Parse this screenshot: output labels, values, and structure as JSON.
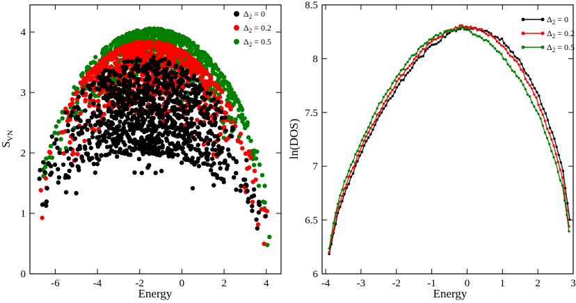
{
  "chart_data": [
    {
      "type": "scatter",
      "panel": "left",
      "xlabel": "Energy",
      "ylabel_main": "S",
      "ylabel_sub": "VN",
      "xlim": [
        -7.2,
        4.7
      ],
      "ylim": [
        0,
        4.45
      ],
      "xticks": [
        -6,
        -4,
        -2,
        0,
        2,
        4
      ],
      "yticks": [
        0,
        1,
        2,
        3,
        4
      ],
      "legend_position": "top-right",
      "series": [
        {
          "name": "Δ₂ = 0",
          "delta_label": "Δ",
          "sub": "2",
          "value_label": "= 0",
          "color": "#000000",
          "peak": 3.6,
          "edge_low": -6.9,
          "edge_high": 4.05
        },
        {
          "name": "Δ₂ = 0.2",
          "delta_label": "Δ",
          "sub": "2",
          "value_label": "= 0.2",
          "color": "#ff0000",
          "peak": 3.85,
          "edge_low": -6.7,
          "edge_high": 4.1
        },
        {
          "name": "Δ₂ = 0.5",
          "delta_label": "Δ",
          "sub": "2",
          "value_label": "= 0.5",
          "color": "#008000",
          "peak": 4.06,
          "edge_low": -6.6,
          "edge_high": 4.4
        }
      ]
    },
    {
      "type": "line",
      "panel": "right",
      "xlabel": "Energy",
      "ylabel": "ln(DOS)",
      "xlim": [
        -4.1,
        3.0
      ],
      "ylim": [
        6.0,
        8.5
      ],
      "xticks": [
        -4,
        -3,
        -2,
        -1,
        0,
        1,
        2,
        3
      ],
      "yticks": [
        6,
        6.5,
        7,
        7.5,
        8,
        8.5
      ],
      "legend_position": "top-right",
      "series": [
        {
          "name": "Δ₂ = 0",
          "delta_label": "Δ",
          "sub": "2",
          "value_label": "= 0",
          "color": "#000000",
          "x": [
            -3.9,
            -3.7,
            -3.5,
            -3.0,
            -2.5,
            -2.0,
            -1.5,
            -1.0,
            -0.5,
            -0.2,
            0.0,
            0.5,
            1.0,
            1.5,
            2.0,
            2.5,
            2.7,
            2.9
          ],
          "y": [
            6.17,
            6.5,
            6.72,
            7.12,
            7.45,
            7.72,
            7.95,
            8.12,
            8.24,
            8.28,
            8.28,
            8.26,
            8.17,
            7.97,
            7.68,
            7.22,
            6.98,
            6.5
          ]
        },
        {
          "name": "Δ₂ = 0.2",
          "delta_label": "Δ",
          "sub": "2",
          "value_label": "= 0.2",
          "color": "#ff0000",
          "x": [
            -3.9,
            -3.7,
            -3.5,
            -3.0,
            -2.5,
            -2.0,
            -1.5,
            -1.0,
            -0.5,
            -0.2,
            0.0,
            0.5,
            1.0,
            1.5,
            2.0,
            2.5,
            2.7,
            2.88
          ],
          "y": [
            6.2,
            6.55,
            6.77,
            7.17,
            7.5,
            7.77,
            7.99,
            8.16,
            8.26,
            8.3,
            8.3,
            8.25,
            8.13,
            7.92,
            7.6,
            7.13,
            6.88,
            6.45
          ]
        },
        {
          "name": "Δ₂ = 0.5",
          "delta_label": "Δ",
          "sub": "2",
          "value_label": "= 0.5",
          "color": "#008000",
          "x": [
            -3.9,
            -3.7,
            -3.5,
            -3.0,
            -2.5,
            -2.0,
            -1.5,
            -1.0,
            -0.5,
            -0.2,
            0.0,
            0.5,
            1.0,
            1.5,
            2.0,
            2.5,
            2.7,
            2.88
          ],
          "y": [
            6.23,
            6.6,
            6.83,
            7.23,
            7.56,
            7.83,
            8.04,
            8.19,
            8.26,
            8.28,
            8.27,
            8.18,
            8.02,
            7.8,
            7.5,
            7.05,
            6.8,
            6.4
          ]
        }
      ]
    }
  ]
}
